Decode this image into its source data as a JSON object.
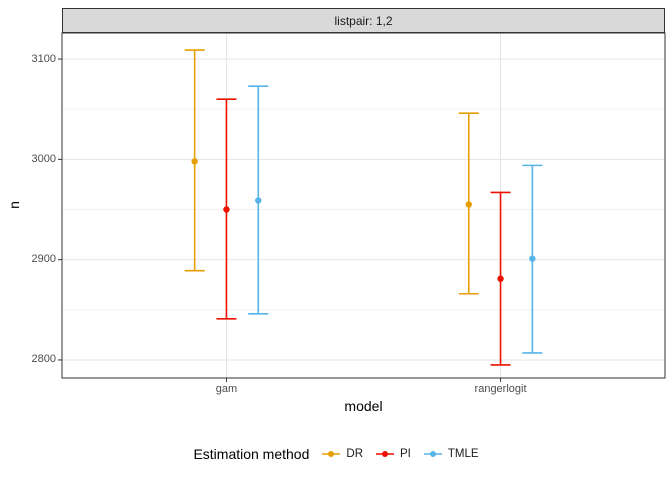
{
  "strip": {
    "label": "listpair: 1,2"
  },
  "axes": {
    "x_title": "model",
    "y_title": "n"
  },
  "legend": {
    "title": "Estimation method"
  },
  "chart_data": {
    "type": "pointrange",
    "facet_label": "listpair: 1,2",
    "title": "",
    "xlabel": "model",
    "ylabel": "n",
    "categories": [
      "gam",
      "rangerlogit"
    ],
    "ylim": [
      2782,
      3126
    ],
    "y_major_ticks": [
      2800,
      2900,
      3000,
      3100
    ],
    "y_minor_ticks": [
      2850,
      2950,
      3050
    ],
    "grid": "on",
    "legend_title": "Estimation method",
    "legend_position": "bottom",
    "panel_background": "#ffffff",
    "strip_background": "#d9d9d9",
    "grid_major_color": "#e5e5e5",
    "grid_minor_color": "#f2f2f2",
    "border_color": "#333333",
    "series": [
      {
        "name": "DR",
        "color": "#e69f00",
        "values": [
          {
            "category": "gam",
            "point": 2998,
            "low": 2889,
            "high": 3109
          },
          {
            "category": "rangerlogit",
            "point": 2955,
            "low": 2866,
            "high": 3046
          }
        ]
      },
      {
        "name": "PI",
        "color": "#ee1100",
        "values": [
          {
            "category": "gam",
            "point": 2950,
            "low": 2841,
            "high": 3060
          },
          {
            "category": "rangerlogit",
            "point": 2881,
            "low": 2795,
            "high": 2967
          }
        ]
      },
      {
        "name": "TMLE",
        "color": "#56b4e9",
        "values": [
          {
            "category": "gam",
            "point": 2959,
            "low": 2846,
            "high": 3073
          },
          {
            "category": "rangerlogit",
            "point": 2901,
            "low": 2807,
            "high": 2994
          }
        ]
      }
    ]
  }
}
